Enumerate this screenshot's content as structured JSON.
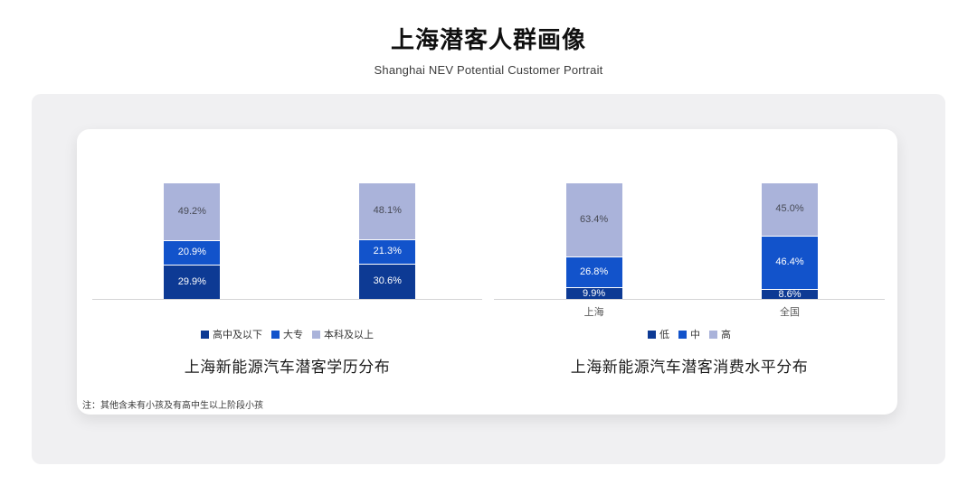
{
  "page": {
    "title": "上海潜客人群画像",
    "subtitle": "Shanghai NEV Potential Customer Portrait",
    "note": "注：其他含未有小孩及有高中生以上阶段小孩"
  },
  "colors": {
    "bar_dark": "#0d3a94",
    "bar_mid": "#1253cb",
    "bar_light": "#aab3da",
    "label_on_dark": "#ffffff",
    "label_on_light": "#474a55",
    "axis_line": "#d4d4d6",
    "panel_bg": "#f0f0f2",
    "card_bg": "#ffffff"
  },
  "chart_data": [
    {
      "type": "bar",
      "subtype": "stacked-percent",
      "title": "上海新能源汽车潜客学历分布",
      "categories": [
        "",
        ""
      ],
      "series": [
        {
          "name": "高中及以下",
          "values": [
            29.9,
            30.6
          ],
          "color": "#0d3a94",
          "label_color": "#ffffff"
        },
        {
          "name": "大专",
          "values": [
            20.9,
            21.3
          ],
          "color": "#1253cb",
          "label_color": "#ffffff"
        },
        {
          "name": "本科及以上",
          "values": [
            49.2,
            48.1
          ],
          "color": "#aab3da",
          "label_color": "#474a55"
        }
      ],
      "value_suffix": "%",
      "ylim": [
        0,
        100
      ],
      "grid": false,
      "legend_position": "bottom"
    },
    {
      "type": "bar",
      "subtype": "stacked-percent",
      "title": "上海新能源汽车潜客消费水平分布",
      "categories": [
        "上海",
        "全国"
      ],
      "series": [
        {
          "name": "低",
          "values": [
            9.9,
            8.6
          ],
          "color": "#0d3a94",
          "label_color": "#ffffff"
        },
        {
          "name": "中",
          "values": [
            26.8,
            46.4
          ],
          "color": "#1253cb",
          "label_color": "#ffffff"
        },
        {
          "name": "高",
          "values": [
            63.4,
            45.0
          ],
          "color": "#aab3da",
          "label_color": "#474a55"
        }
      ],
      "value_suffix": "%",
      "ylim": [
        0,
        100
      ],
      "grid": false,
      "legend_position": "bottom"
    }
  ]
}
